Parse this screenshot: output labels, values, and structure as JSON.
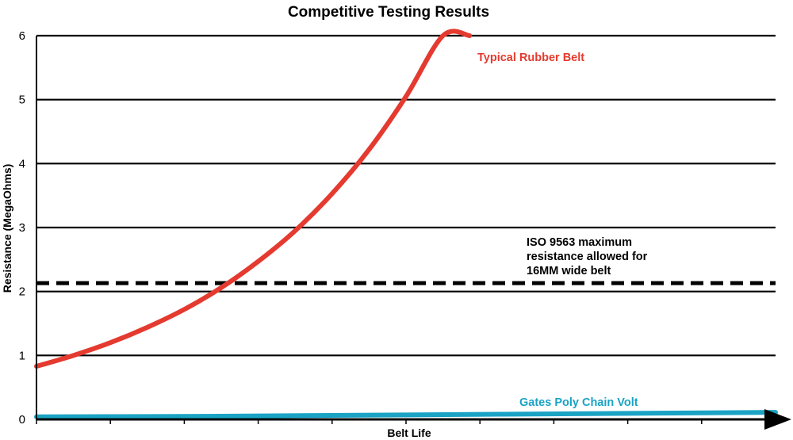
{
  "chart_data": {
    "type": "line",
    "title": "Competitive Testing Results",
    "xlabel": "Belt Life",
    "ylabel": "Resistance (MegaOhms)",
    "ylim": [
      0,
      6
    ],
    "yticks": [
      "0",
      "1",
      "2",
      "3",
      "4",
      "5",
      "6"
    ],
    "xticks_count": 10,
    "grid": "horizontal",
    "series": [
      {
        "name": "Typical Rubber Belt",
        "color": "#e53a2f",
        "x": [
          0,
          0.5,
          1,
          1.5,
          2,
          2.5,
          3,
          3.5,
          4,
          4.5,
          5,
          5.5,
          5.86
        ],
        "y": [
          0.83,
          1.0,
          1.2,
          1.44,
          1.72,
          2.06,
          2.47,
          2.95,
          3.53,
          4.22,
          5.05,
          6.0,
          6.0
        ]
      },
      {
        "name": "Gates Poly Chain Volt",
        "color": "#1aa3c4",
        "x": [
          0,
          2.5,
          5,
          7.5,
          10
        ],
        "y": [
          0.04,
          0.05,
          0.07,
          0.09,
          0.11
        ]
      }
    ],
    "threshold": {
      "y": 2.13,
      "style": "dashed",
      "color": "#000000",
      "label_lines": [
        "ISO 9563 maximum",
        "resistance allowed for",
        "16MM wide belt"
      ]
    }
  }
}
